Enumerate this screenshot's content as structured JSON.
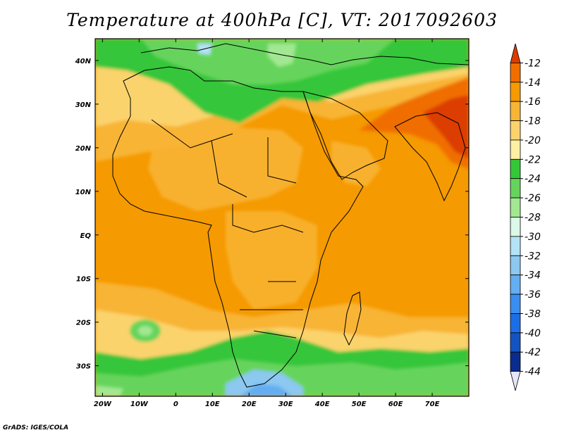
{
  "title": "Temperature at 400hPa [C], VT: 2017092603",
  "credit": "GrADS: IGES/COLA",
  "map": {
    "lon_range": [
      -22,
      80
    ],
    "lat_range": [
      -37,
      45
    ],
    "lon_ticks": [
      {
        "value": -20,
        "label": "20W"
      },
      {
        "value": -10,
        "label": "10W"
      },
      {
        "value": 0,
        "label": "0"
      },
      {
        "value": 10,
        "label": "10E"
      },
      {
        "value": 20,
        "label": "20E"
      },
      {
        "value": 30,
        "label": "30E"
      },
      {
        "value": 40,
        "label": "40E"
      },
      {
        "value": 50,
        "label": "50E"
      },
      {
        "value": 60,
        "label": "60E"
      },
      {
        "value": 70,
        "label": "70E"
      }
    ],
    "lat_ticks": [
      {
        "value": 40,
        "label": "40N"
      },
      {
        "value": 30,
        "label": "30N"
      },
      {
        "value": 20,
        "label": "20N"
      },
      {
        "value": 10,
        "label": "10N"
      },
      {
        "value": 0,
        "label": "EQ"
      },
      {
        "value": -10,
        "label": "10S"
      },
      {
        "value": -20,
        "label": "20S"
      },
      {
        "value": -30,
        "label": "30S"
      }
    ]
  },
  "colorbar": {
    "levels": [
      "-12",
      "-14",
      "-16",
      "-18",
      "-20",
      "-22",
      "-24",
      "-26",
      "-28",
      "-30",
      "-32",
      "-34",
      "-36",
      "-38",
      "-40",
      "-42",
      "-44"
    ],
    "colors": [
      "#dc3c00",
      "#f06e00",
      "#f59a00",
      "#f8b434",
      "#fbd36c",
      "#fdf0a4",
      "#36c63a",
      "#66d45c",
      "#a2e892",
      "#dcf8e8",
      "#b4e2f6",
      "#8cc8f0",
      "#64aef2",
      "#3a8ef0",
      "#1c6ee6",
      "#1454c2",
      "#0a2c8c",
      "#0a1464"
    ]
  },
  "colors": {
    "ocean_warm": "#f59a00",
    "land_warm": "#f8b434",
    "hot_core": "#dc3c00",
    "mid_lat_green": "#36c63a",
    "cold_blue": "#64aef2"
  }
}
